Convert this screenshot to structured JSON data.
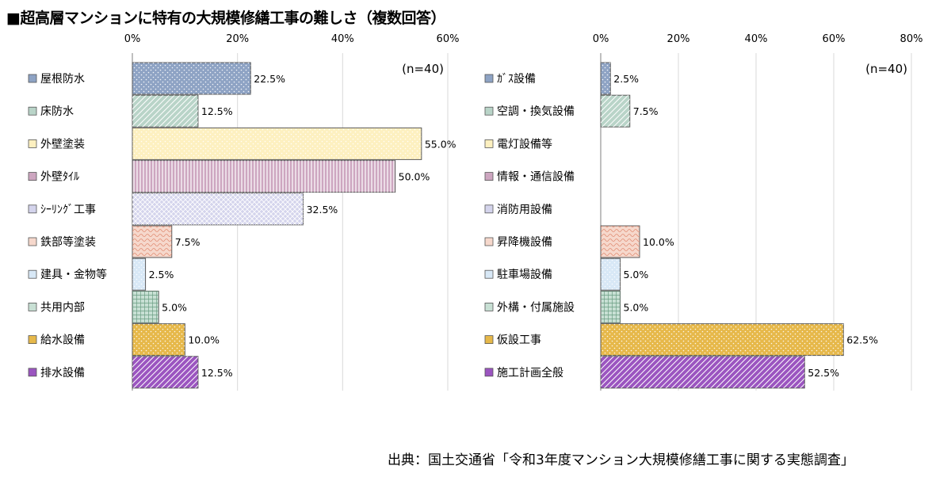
{
  "title": "■超高層マンションに特有の大規模修繕工事の難しさ（複数回答）",
  "source": "出典：国土交通省「令和3年度マンション大規模修繕工事に関する実態調査」",
  "chart_data": [
    {
      "type": "bar",
      "orientation": "horizontal",
      "note": "(n=40)",
      "xlim": [
        0,
        60
      ],
      "xticks": [
        "0%",
        "20%",
        "40%",
        "60%"
      ],
      "grid": true,
      "categories": [
        "屋根防水",
        "床防水",
        "外壁塗装",
        "外壁ﾀｲﾙ",
        "ｼｰﾘﾝｸﾞ工事",
        "鉄部等塗装",
        "建具・金物等",
        "共用内部",
        "給水設備",
        "排水設備"
      ],
      "values": [
        22.5,
        12.5,
        55.0,
        50.0,
        32.5,
        7.5,
        2.5,
        5.0,
        10.0,
        12.5
      ],
      "value_labels": [
        "22.5%",
        "12.5%",
        "55.0%",
        "50.0%",
        "32.5%",
        "7.5%",
        "2.5%",
        "5.0%",
        "10.0%",
        "12.5%"
      ],
      "colors": [
        "#8ea3c4",
        "#b9d4c8",
        "#fdf0c0",
        "#cda6c0",
        "#d4d4ec",
        "#f6d8cc",
        "#d8e8f6",
        "#c8e0d4",
        "#e6b84a",
        "#9b55c0"
      ],
      "patterns": [
        "dots",
        "diag",
        "dots",
        "vlines",
        "cross",
        "wave",
        "dots",
        "grid",
        "dots",
        "diag"
      ]
    },
    {
      "type": "bar",
      "orientation": "horizontal",
      "note": "(n=40)",
      "xlim": [
        0,
        80
      ],
      "xticks": [
        "0%",
        "20%",
        "40%",
        "60%",
        "80%"
      ],
      "grid": true,
      "categories": [
        "ｶﾞｽ設備",
        "空調・換気設備",
        "電灯設備等",
        "情報・通信設備",
        "消防用設備",
        "昇降機設備",
        "駐車場設備",
        "外構・付属施設",
        "仮設工事",
        "施工計画全般"
      ],
      "values": [
        2.5,
        7.5,
        0,
        0,
        0,
        10.0,
        5.0,
        5.0,
        62.5,
        52.5
      ],
      "value_labels": [
        "2.5%",
        "7.5%",
        "",
        "",
        "",
        "10.0%",
        "5.0%",
        "5.0%",
        "62.5%",
        "52.5%"
      ],
      "colors": [
        "#8ea3c4",
        "#b9d4c8",
        "#fdf0c0",
        "#cda6c0",
        "#d4d4ec",
        "#f6d8cc",
        "#d8e8f6",
        "#c8e0d4",
        "#e6b84a",
        "#9b55c0"
      ],
      "patterns": [
        "dots",
        "diag",
        "dots",
        "vlines",
        "cross",
        "wave",
        "dots",
        "grid",
        "dots",
        "diag"
      ]
    }
  ]
}
